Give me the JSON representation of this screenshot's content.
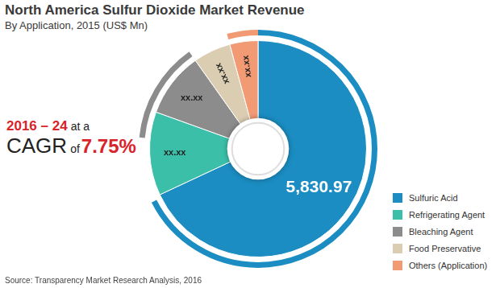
{
  "chart_data": {
    "type": "doughnut",
    "title": "North America Sulfur Dioxide Market Revenue",
    "subtitle": "By Application, 2015 (US$ Mn)",
    "categories": [
      "Sulfuric Acid",
      "Refrigerating Agent",
      "Bleaching Agent",
      "Food Preservative",
      "Others (Application)"
    ],
    "values": [
      5830.97,
      1070,
      830,
      480,
      360
    ],
    "value_labels": [
      "5,830.97",
      "xx.xx",
      "xx.xx",
      "xx.xx",
      "xx.xx"
    ],
    "colors": [
      "#1b8dc2",
      "#3bbfa8",
      "#8c8c8c",
      "#dacdb2",
      "#f29a74"
    ],
    "data_labels": true,
    "legend": "lower right",
    "annotations": [
      "2016 – 24",
      "at a",
      "CAGR",
      "of",
      "7.75%"
    ],
    "source": "Source: Transparency Market Research Analysis, 2016"
  }
}
